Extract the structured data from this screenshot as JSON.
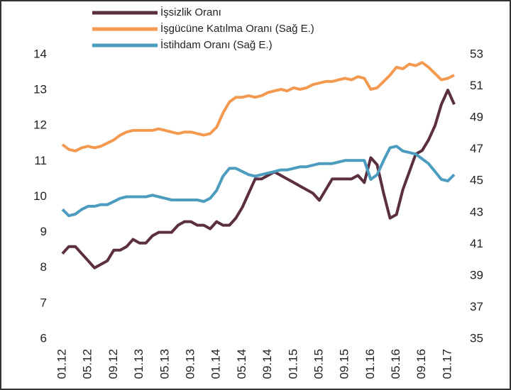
{
  "chart_data": {
    "type": "line",
    "categories": [
      "01.12",
      null,
      null,
      null,
      "05.12",
      null,
      null,
      null,
      "09.12",
      null,
      null,
      null,
      "01.13",
      null,
      null,
      null,
      "05.13",
      null,
      null,
      null,
      "09.13",
      null,
      null,
      null,
      "01.14",
      null,
      null,
      null,
      "05.14",
      null,
      null,
      null,
      "09.14",
      null,
      null,
      null,
      "01.15",
      null,
      null,
      null,
      "05.15",
      null,
      null,
      null,
      "09.15",
      null,
      null,
      null,
      "01.16",
      null,
      null,
      null,
      "05.16",
      null,
      null,
      null,
      "09.16",
      null,
      null,
      null,
      "01.17",
      null
    ],
    "series": [
      {
        "name": "İşsizlik Oranı",
        "color": "#5b2f40",
        "values": [
          8.4,
          8.6,
          8.6,
          8.4,
          8.2,
          8.0,
          8.1,
          8.2,
          8.5,
          8.5,
          8.6,
          8.8,
          8.7,
          8.7,
          8.9,
          9.0,
          9.0,
          9.0,
          9.2,
          9.3,
          9.3,
          9.2,
          9.2,
          9.1,
          9.3,
          9.2,
          9.2,
          9.4,
          9.7,
          10.1,
          10.5,
          10.5,
          10.6,
          10.7,
          10.6,
          10.5,
          10.4,
          10.3,
          10.2,
          10.1,
          9.9,
          10.2,
          10.5,
          10.5,
          10.5,
          10.5,
          10.6,
          10.4,
          11.1,
          10.9,
          10.1,
          9.4,
          9.5,
          10.2,
          10.7,
          11.2,
          11.3,
          11.6,
          12.0,
          12.6,
          13.0,
          12.6
        ]
      },
      {
        "name": "İşgücüne Katılma Oranı (Sağ E.)",
        "color": "#f39a50",
        "axis": "y2",
        "values": [
          47.3,
          47.0,
          46.9,
          47.1,
          47.2,
          47.1,
          47.2,
          47.4,
          47.6,
          47.9,
          48.1,
          48.2,
          48.2,
          48.2,
          48.2,
          48.3,
          48.2,
          48.1,
          48.0,
          48.1,
          48.1,
          48.0,
          47.9,
          48.0,
          48.4,
          49.3,
          50.0,
          50.3,
          50.3,
          50.4,
          50.3,
          50.4,
          50.6,
          50.7,
          50.8,
          50.7,
          50.9,
          50.8,
          50.9,
          51.1,
          51.2,
          51.3,
          51.3,
          51.4,
          51.5,
          51.4,
          51.6,
          51.5,
          50.8,
          50.9,
          51.3,
          51.7,
          52.2,
          52.1,
          52.4,
          52.3,
          52.5,
          52.2,
          51.8,
          51.4,
          51.5,
          51.7
        ]
      },
      {
        "name": "İstihdam Oranı (Sağ E.)",
        "color": "#4b9cbf",
        "axis": "y2",
        "values": [
          43.2,
          42.8,
          42.9,
          43.2,
          43.4,
          43.4,
          43.5,
          43.5,
          43.7,
          43.9,
          44.0,
          44.0,
          44.0,
          44.0,
          44.1,
          44.0,
          43.9,
          43.8,
          43.8,
          43.8,
          43.8,
          43.8,
          43.7,
          43.9,
          44.4,
          45.3,
          45.8,
          45.8,
          45.6,
          45.4,
          45.3,
          45.4,
          45.5,
          45.6,
          45.7,
          45.7,
          45.8,
          45.9,
          45.9,
          46.0,
          46.1,
          46.1,
          46.1,
          46.2,
          46.3,
          46.3,
          46.3,
          46.3,
          45.1,
          45.4,
          46.3,
          47.1,
          47.2,
          46.9,
          46.8,
          46.7,
          46.4,
          46.1,
          45.6,
          45.1,
          45.0,
          45.4
        ]
      }
    ],
    "ylim": [
      6,
      14
    ],
    "yticks": [
      6,
      7,
      8,
      9,
      10,
      11,
      12,
      13,
      14
    ],
    "y2lim": [
      35,
      53
    ],
    "y2ticks": [
      35,
      37,
      39,
      41,
      43,
      45,
      47,
      49,
      51,
      53
    ],
    "legend": "top",
    "grid": false
  }
}
